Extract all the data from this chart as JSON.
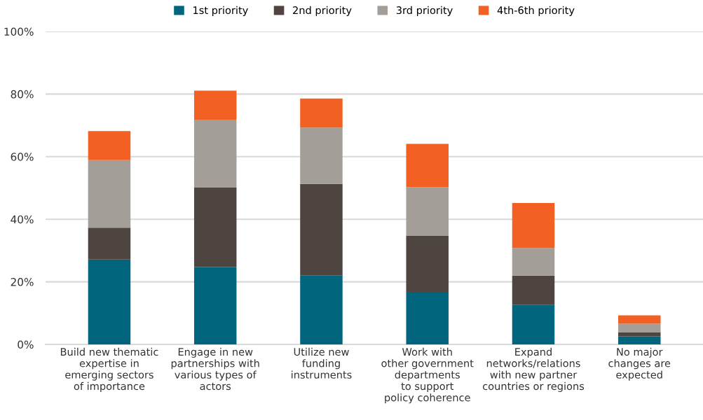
{
  "chart_data": {
    "type": "bar",
    "stacked": true,
    "categories": [
      "Build new thematic\nexpertise in\nemerging sectors\nof importance",
      "Engage in new\npartnerships with\nvarious types of\nactors",
      "Utilize new\nfunding\ninstruments",
      "Work with\nother government\ndepartments\nto support\npolicy coherence",
      "Expand\nnetworks/relations\nwith new partner\ncountries or regions",
      "No major\nchanges are\nexpected"
    ],
    "series": [
      {
        "name": "1st priority",
        "color": "#00657d",
        "values": [
          27.1,
          24.7,
          22.0,
          16.8,
          12.7,
          2.6
        ]
      },
      {
        "name": "2nd priority",
        "color": "#4e4540",
        "values": [
          10.2,
          25.5,
          29.3,
          18.0,
          9.3,
          1.3
        ]
      },
      {
        "name": "3rd priority",
        "color": "#a39e97",
        "values": [
          21.6,
          21.6,
          18.0,
          15.4,
          8.8,
          2.7
        ]
      },
      {
        "name": "4th-6th priority",
        "color": "#f26024",
        "values": [
          9.3,
          9.3,
          9.3,
          13.9,
          14.4,
          2.7
        ]
      }
    ],
    "ylim": [
      0,
      100
    ],
    "yticks": [
      {
        "value": 0,
        "label": "0%"
      },
      {
        "value": 20,
        "label": "20%"
      },
      {
        "value": 40,
        "label": "40%"
      },
      {
        "value": 60,
        "label": "60%"
      },
      {
        "value": 80,
        "label": "80%"
      },
      {
        "value": 100,
        "label": "100%"
      }
    ],
    "grid": "y",
    "legend": "top"
  }
}
